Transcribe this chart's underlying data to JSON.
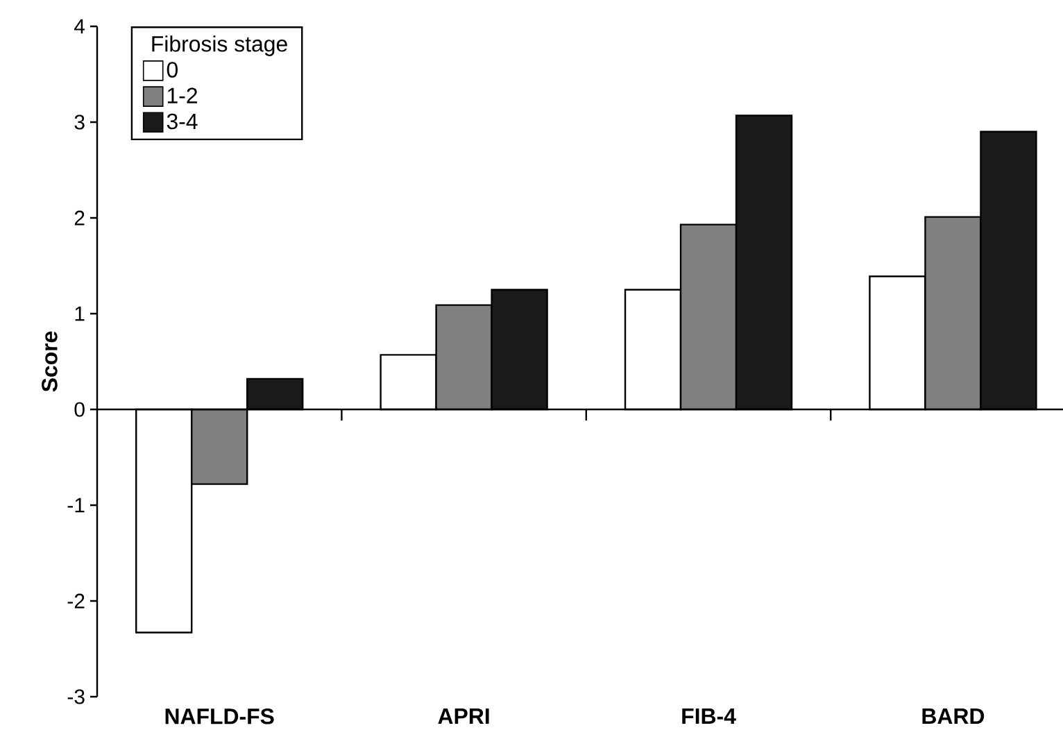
{
  "chart_data": {
    "type": "bar",
    "ylabel": "Score",
    "legend_title": "Fibrosis stage",
    "legend": "top left",
    "categories": [
      "NAFLD-FS",
      "APRI",
      "FIB-4",
      "BARD"
    ],
    "series": [
      {
        "name": "0",
        "color": "#ffffff",
        "values": [
          -2.33,
          0.57,
          1.25,
          1.39
        ]
      },
      {
        "name": "1-2",
        "color": "#808080",
        "values": [
          -0.78,
          1.09,
          1.93,
          2.01
        ]
      },
      {
        "name": "3-4",
        "color": "#1a1a1a",
        "values": [
          0.32,
          1.25,
          3.07,
          2.9
        ]
      }
    ],
    "ylim": [
      -3,
      4
    ],
    "yticks": [
      -3,
      -2,
      -1,
      0,
      1,
      2,
      3,
      4
    ]
  }
}
